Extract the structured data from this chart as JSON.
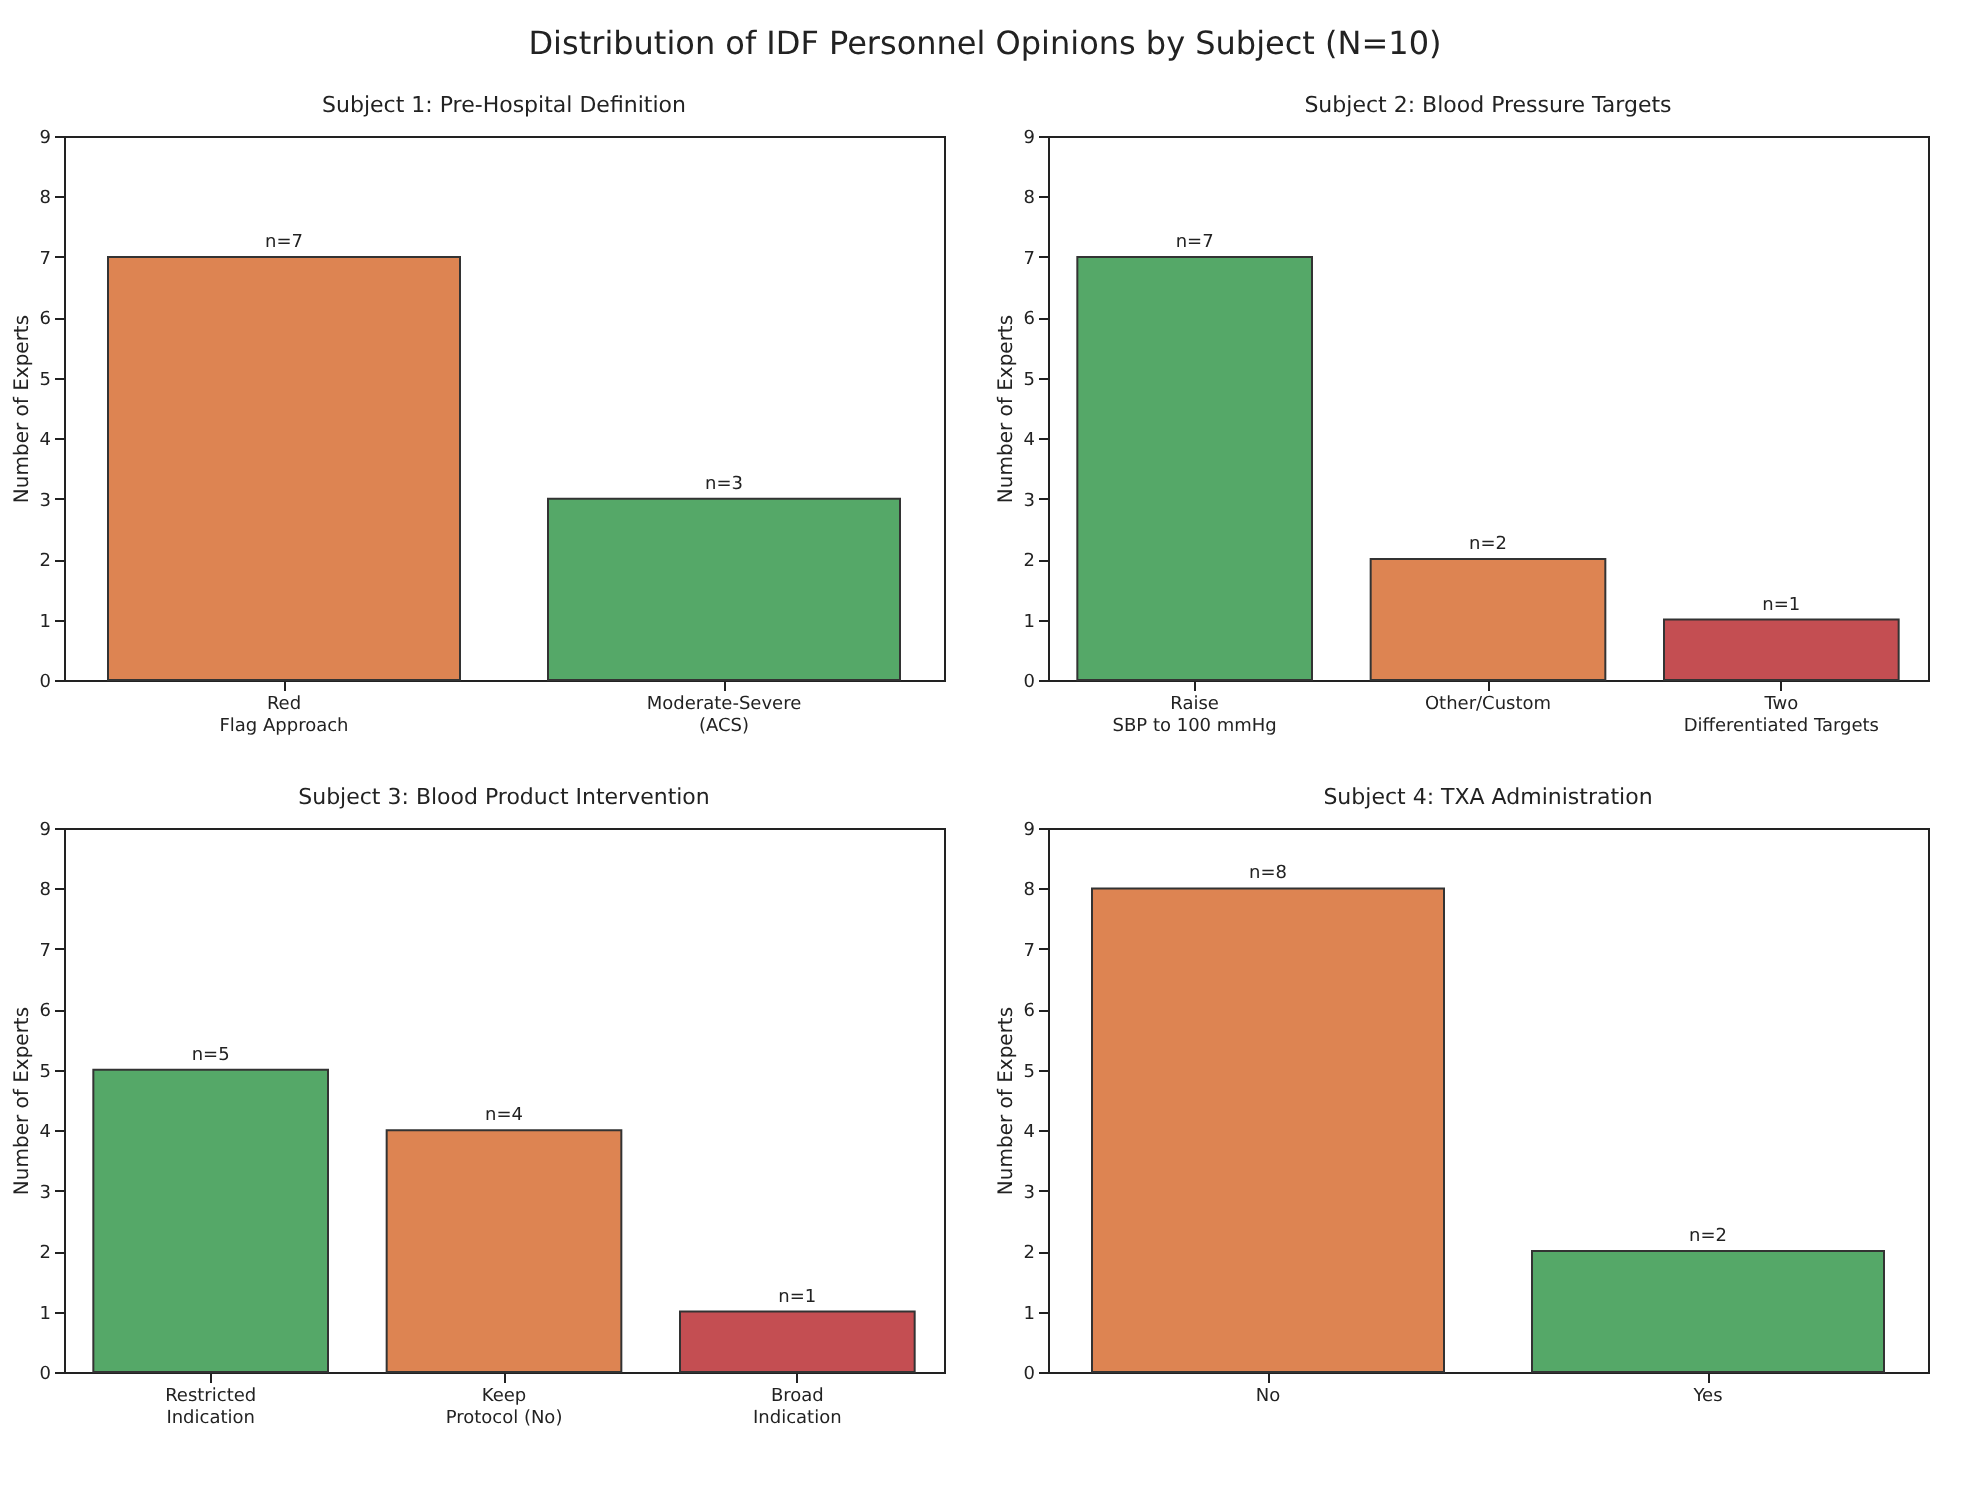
{
  "chart_data": [
    {
      "type": "bar",
      "title": "Subject 1: Pre-Hospital Definition",
      "ylabel": "Number of Experts",
      "annotations": [
        "Distribution of IDF Personnel Opinions by Subject (N=10)"
      ],
      "categories": [
        "Red\nFlag Approach",
        "Moderate-Severe\n(ACS)"
      ],
      "values": [
        7,
        3
      ],
      "colors": [
        "#dd8452",
        "#55a868"
      ],
      "value_labels": [
        "n=7",
        "n=3"
      ],
      "ylim": [
        0,
        9
      ],
      "yticks": [
        0,
        1,
        2,
        3,
        4,
        5,
        6,
        7,
        8,
        9
      ]
    },
    {
      "type": "bar",
      "title": "Subject 2: Blood Pressure Targets",
      "ylabel": "Number of Experts",
      "categories": [
        "Raise\nSBP to 100 mmHg",
        "Other/Custom",
        "Two\nDifferentiated Targets"
      ],
      "values": [
        7,
        2,
        1
      ],
      "colors": [
        "#55a868",
        "#dd8452",
        "#c44e52"
      ],
      "value_labels": [
        "n=7",
        "n=2",
        "n=1"
      ],
      "ylim": [
        0,
        9
      ],
      "yticks": [
        0,
        1,
        2,
        3,
        4,
        5,
        6,
        7,
        8,
        9
      ]
    },
    {
      "type": "bar",
      "title": "Subject 3: Blood Product Intervention",
      "ylabel": "Number of Experts",
      "categories": [
        "Restricted\nIndication",
        "Keep\nProtocol (No)",
        "Broad\nIndication"
      ],
      "values": [
        5,
        4,
        1
      ],
      "colors": [
        "#55a868",
        "#dd8452",
        "#c44e52"
      ],
      "value_labels": [
        "n=5",
        "n=4",
        "n=1"
      ],
      "ylim": [
        0,
        9
      ],
      "yticks": [
        0,
        1,
        2,
        3,
        4,
        5,
        6,
        7,
        8,
        9
      ]
    },
    {
      "type": "bar",
      "title": "Subject 4: TXA Administration",
      "ylabel": "Number of Experts",
      "categories": [
        "No",
        "Yes"
      ],
      "values": [
        8,
        2
      ],
      "colors": [
        "#dd8452",
        "#55a868"
      ],
      "value_labels": [
        "n=8",
        "n=2"
      ],
      "ylim": [
        0,
        9
      ],
      "yticks": [
        0,
        1,
        2,
        3,
        4,
        5,
        6,
        7,
        8,
        9
      ]
    }
  ]
}
